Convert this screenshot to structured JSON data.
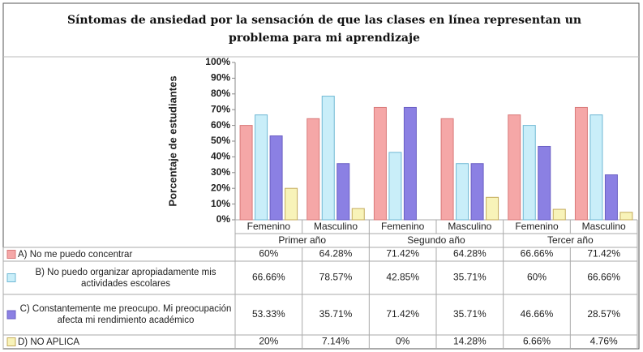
{
  "chart_data": {
    "type": "bar",
    "title": "Síntomas de ansiedad por la sensación de que las clases en línea representan un problema para mi aprendizaje",
    "y_label": "Porcentaje de estudiantes",
    "categories": [
      "Femenino",
      "Masculino",
      "Femenino",
      "Masculino",
      "Femenino",
      "Masculino"
    ],
    "groups": [
      "Primer año",
      "Segundo año",
      "Tercer año"
    ],
    "ylim": [
      0,
      100
    ],
    "yticks": [
      {
        "value": 0,
        "label": "0%"
      },
      {
        "value": 10,
        "label": "10%"
      },
      {
        "value": 20,
        "label": "20%"
      },
      {
        "value": 30,
        "label": "30%"
      },
      {
        "value": 40,
        "label": "40%"
      },
      {
        "value": 50,
        "label": "50%"
      },
      {
        "value": 60,
        "label": "60%"
      },
      {
        "value": 70,
        "label": "70%"
      },
      {
        "value": 80,
        "label": "80%"
      },
      {
        "value": 90,
        "label": "90%"
      },
      {
        "value": 100,
        "label": "100%"
      }
    ],
    "series": [
      {
        "name": "A) No me puedo concentrar",
        "color": "#f5a7a7",
        "stroke": "#d97a7a",
        "values": [
          60,
          64.28,
          71.42,
          64.28,
          66.66,
          71.42
        ],
        "value_labels": [
          "60%",
          "64.28%",
          "71.42%",
          "64.28%",
          "66.66%",
          "71.42%"
        ]
      },
      {
        "name": "B) No puedo organizar apropiadamente mis actividades escolares",
        "color": "#c9eef9",
        "stroke": "#6fb8d4",
        "values": [
          66.66,
          78.57,
          42.85,
          35.71,
          60,
          66.66
        ],
        "value_labels": [
          "66.66%",
          "78.57%",
          "42.85%",
          "35.71%",
          "60%",
          "66.66%"
        ]
      },
      {
        "name": "C) Constantemente me preocupo. Mi preocupación afecta mi rendimiento académico",
        "color": "#8b80e3",
        "stroke": "#6a5fc4",
        "values": [
          53.33,
          35.71,
          71.42,
          35.71,
          46.66,
          28.57
        ],
        "value_labels": [
          "53.33%",
          "35.71%",
          "71.42%",
          "35.71%",
          "46.66%",
          "28.57%"
        ]
      },
      {
        "name": "D) NO APLICA",
        "color": "#f8f3b9",
        "stroke": "#c4ab5c",
        "values": [
          20,
          7.14,
          0,
          14.28,
          6.66,
          4.76
        ],
        "value_labels": [
          "20%",
          "7.14%",
          "0%",
          "14.28%",
          "6.66%",
          "4.76%"
        ]
      }
    ]
  }
}
